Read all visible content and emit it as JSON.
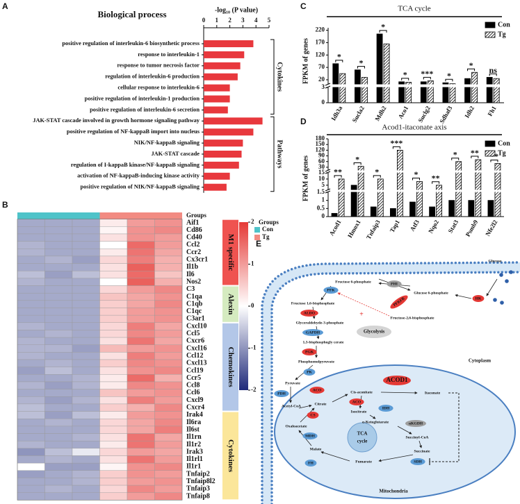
{
  "panels": [
    "A",
    "B",
    "C",
    "D",
    "E"
  ],
  "chart_data": [
    {
      "type": "bar",
      "orientation": "horizontal",
      "title": "Biological process",
      "x_label": "-log₁₀ (P value)",
      "categories": [
        "positive regulation of interleukin-6 biosynthetic process",
        "response to interleukin-1",
        "response to tumor necrosis factor",
        "regulation of interleukin-6 production",
        "cellular response to interleukin-6",
        "positive regulation of interleukin-1 production",
        "positive regulation of interleukin-6 secretion",
        "JAK-STAT cascade involved in growth hormone signaling pathway",
        "positive regulation of NF-kappaB import into nucleus",
        "NIK/NF-kappaB signaling",
        "JAK-STAT cascade",
        "regulation of I-kappaB kinase/NF-kappaB signaling",
        "activation of NF-kappaB-inducing kinase activity",
        "positive regulation of NIK/NF-kappaB signaling"
      ],
      "values": [
        3.8,
        3.1,
        2.8,
        2.6,
        2.0,
        2.0,
        1.85,
        4.5,
        3.8,
        3.0,
        2.9,
        2.7,
        2.0,
        1.75
      ],
      "color": "#e8383d",
      "xlim": [
        0,
        5
      ],
      "xticks": [
        0,
        1,
        2,
        3,
        4,
        5
      ],
      "groups": [
        {
          "name": "Cytokines",
          "size": 7
        },
        {
          "name": "Pathways",
          "size": 7
        }
      ]
    },
    {
      "type": "heatmap",
      "rows": [
        "Aif1",
        "Cd86",
        "Cd40",
        "Ccl2",
        "Ccr2",
        "Cx3cr1",
        "Il1b",
        "Il6",
        "Nos2",
        "C3",
        "C1qa",
        "C1qb",
        "C1qc",
        "C3ar1",
        "Cxcl10",
        "Ccl5",
        "Cxcr6",
        "Cxcl16",
        "Ccl12",
        "Cxcl13",
        "Ccl19",
        "Ccr5",
        "Ccl8",
        "Ccl6",
        "Cxcl9",
        "Cxcr4",
        "Irak4",
        "Il6ra",
        "Il6st",
        "Il1rn",
        "Il1r2",
        "Irak3",
        "Il1rl1",
        "Il1r1",
        "Tnfaip2",
        "Tnfaip8l2",
        "Tnfaip3",
        "Tnfaip8"
      ],
      "values": [
        [
          -0.8,
          -0.8,
          -0.8,
          0.2,
          1.0,
          1.1
        ],
        [
          -0.8,
          -0.8,
          -0.8,
          0.1,
          1.1,
          1.2
        ],
        [
          -0.8,
          -0.8,
          -0.8,
          0.3,
          1.1,
          1.0
        ],
        [
          -0.7,
          -0.8,
          -0.8,
          0.0,
          1.5,
          1.0
        ],
        [
          -0.7,
          -0.8,
          -0.8,
          0.2,
          1.4,
          0.9
        ],
        [
          -0.8,
          -0.7,
          -0.9,
          0.4,
          1.3,
          0.8
        ],
        [
          -0.8,
          -0.8,
          -0.8,
          0.3,
          1.6,
          0.8
        ],
        [
          -0.6,
          -0.9,
          -0.6,
          0.3,
          1.5,
          0.6
        ],
        [
          -0.7,
          -0.8,
          -0.8,
          0.0,
          1.6,
          0.8
        ],
        [
          -0.8,
          -0.8,
          -0.8,
          0.4,
          1.0,
          1.2
        ],
        [
          -0.8,
          -0.8,
          -0.8,
          0.6,
          0.9,
          1.1
        ],
        [
          -0.8,
          -0.8,
          -0.8,
          0.5,
          0.9,
          1.2
        ],
        [
          -0.8,
          -0.8,
          -0.8,
          0.5,
          1.0,
          1.1
        ],
        [
          -0.8,
          -0.8,
          -0.8,
          0.5,
          1.0,
          1.1
        ],
        [
          -0.7,
          -0.8,
          -0.8,
          0.4,
          1.3,
          0.9
        ],
        [
          -0.8,
          -0.7,
          -0.8,
          0.4,
          1.2,
          1.0
        ],
        [
          -0.7,
          -0.8,
          -0.8,
          0.3,
          1.4,
          0.9
        ],
        [
          -0.7,
          -0.7,
          -0.9,
          0.7,
          1.0,
          1.1
        ],
        [
          -0.7,
          -0.8,
          -0.8,
          0.3,
          1.3,
          1.0
        ],
        [
          -0.8,
          -0.7,
          -0.8,
          0.5,
          1.2,
          1.1
        ],
        [
          -0.9,
          -0.6,
          -0.8,
          0.3,
          1.1,
          1.2
        ],
        [
          -0.8,
          -0.8,
          -0.7,
          0.2,
          1.5,
          0.8
        ],
        [
          -0.7,
          -0.9,
          -0.7,
          0.2,
          1.2,
          1.1
        ],
        [
          -0.8,
          -0.8,
          -0.8,
          0.6,
          1.0,
          1.1
        ],
        [
          -0.7,
          -0.9,
          -0.7,
          0.3,
          1.3,
          1.0
        ],
        [
          -0.6,
          -0.8,
          -0.8,
          0.5,
          0.8,
          1.2
        ],
        [
          -0.6,
          -0.9,
          -0.6,
          0.2,
          1.0,
          1.1
        ],
        [
          -0.8,
          -0.7,
          -0.8,
          0.4,
          0.9,
          1.2
        ],
        [
          -0.8,
          -0.8,
          -0.8,
          0.4,
          0.9,
          1.3
        ],
        [
          -0.8,
          -0.8,
          -0.7,
          0.3,
          1.4,
          0.9
        ],
        [
          -0.7,
          -0.8,
          -0.8,
          0.2,
          1.4,
          1.0
        ],
        [
          -1.0,
          -0.6,
          -0.2,
          0.4,
          1.0,
          0.9
        ],
        [
          -0.8,
          -0.7,
          -0.8,
          0.3,
          1.4,
          1.0
        ],
        [
          0.0,
          -0.9,
          -0.9,
          0.1,
          1.1,
          1.2
        ],
        [
          -0.9,
          -0.8,
          -0.7,
          0.5,
          1.1,
          1.0
        ],
        [
          -0.8,
          -0.8,
          -0.7,
          0.5,
          1.0,
          1.1
        ],
        [
          -0.8,
          -0.7,
          -0.8,
          0.4,
          1.2,
          1.0
        ],
        [
          -0.8,
          -0.8,
          -0.8,
          0.5,
          1.0,
          1.2
        ]
      ],
      "zlim": [
        -2,
        2
      ],
      "zticks": [
        -2,
        -1,
        0,
        1,
        2
      ],
      "colormap": [
        "#1f2a7a",
        "#ffffff",
        "#e53935"
      ],
      "annotation": {
        "title": "Groups",
        "groups": [
          {
            "name": "Con",
            "color": "#4fc3c9"
          },
          {
            "name": "Tg",
            "color": "#f28b82"
          }
        ],
        "columns": [
          "Con",
          "Con",
          "Con",
          "Tg",
          "Tg",
          "Tg"
        ]
      },
      "row_groups": [
        {
          "name": "M1 specific",
          "color": "#ef5350",
          "size": 9
        },
        {
          "name": "Alexin",
          "color": "#d5ebc0",
          "size": 5
        },
        {
          "name": "Chemokines",
          "color": "#b3c7e8",
          "size": 12
        },
        {
          "name": "Cytokines",
          "color": "#fbe69a",
          "size": 12
        }
      ]
    },
    {
      "type": "grouped_bar",
      "title": "TCA cycle",
      "y_label": "FPKM of genes",
      "categories": [
        "Idh3a",
        "Sucla2",
        "Mdh2",
        "Aco1",
        "Suclg2",
        "Sdhaf3",
        "Idh2",
        "Fh1"
      ],
      "series": [
        {
          "name": "Con",
          "color": "#000000",
          "pattern": "solid",
          "values": [
            85,
            60,
            205,
            12,
            12,
            8,
            25,
            30
          ]
        },
        {
          "name": "Tg",
          "color": "#000000",
          "pattern": "hatch",
          "values": [
            45,
            30,
            165,
            10,
            16,
            4,
            50,
            25
          ]
        }
      ],
      "y_segments": [
        {
          "ylim": [
            0,
            3
          ],
          "yticks": [
            0,
            3
          ]
        },
        {
          "ylim": [
            3,
            230
          ],
          "yticks": [
            20,
            70,
            120,
            170,
            220
          ]
        }
      ],
      "annotations": [
        "*",
        "*",
        "*",
        "*",
        "***",
        "*",
        "*",
        "ns"
      ]
    },
    {
      "type": "grouped_bar",
      "title": "Acod1-itaconate axis",
      "y_label": "FPKM of genes",
      "categories": [
        "Acod1",
        "Hmox1",
        "Tnfaip3",
        "Tap1",
        "Atf3",
        "Nqo2",
        "Stat3",
        "Psmb9",
        "Nfe2l2"
      ],
      "series": [
        {
          "name": "Con",
          "color": "#000000",
          "pattern": "solid",
          "values": [
            0.2,
            5,
            0.6,
            0.5,
            0.9,
            0.6,
            1.0,
            1.0,
            1.0
          ]
        },
        {
          "name": "Tg",
          "color": "#000000",
          "pattern": "hatch",
          "values": [
            10,
            35,
            10,
            120,
            8,
            5,
            60,
            70,
            50
          ]
        }
      ],
      "y_segments": [
        {
          "ylim": [
            0,
            1.5
          ],
          "yticks": [
            0,
            0.5,
            1,
            1.5
          ]
        },
        {
          "ylim": [
            1.5,
            15
          ],
          "yticks": [
            5,
            10,
            15
          ]
        },
        {
          "ylim": [
            15,
            180
          ],
          "yticks": [
            30,
            60,
            90,
            120,
            150,
            180
          ]
        }
      ],
      "annotations": [
        "**",
        "*",
        "*",
        "***",
        "*",
        "**",
        "*",
        "**",
        "**"
      ]
    }
  ],
  "diagram": {
    "labels": [
      "Glucose",
      "HK",
      "Glucose 6-phosphate",
      "PHI",
      "Fructose 6-phosphate",
      "PFK",
      "PFKFB",
      "Fructose-2,6-bisphosphate",
      "+",
      "Fructose 1,6-bisphosphate",
      "ALDO",
      "Glyceraldehyde-3-phosphate",
      "GAPDH",
      "Glycolysis",
      "1,3-bisphosphogly cerate",
      "PGK",
      "Phosphoenolpyruvate",
      "PK",
      "Pyruvate",
      "PDH",
      "Acetyl-CoA",
      "Cytoplasm",
      "ACOD1",
      "Cis-aconitate",
      "Itaconate",
      "ACO",
      "ACO",
      "Citrate",
      "Isocitrate",
      "IDH",
      "CS",
      "Oxaloacetate",
      "α-Ketoglutarate",
      "αKGDH",
      "TCA",
      "cycle",
      "MDH",
      "Succinyl-CoA",
      "Malate",
      "Succinate",
      "FH",
      "Fumarate",
      "SDH",
      "Mitochondria"
    ]
  }
}
